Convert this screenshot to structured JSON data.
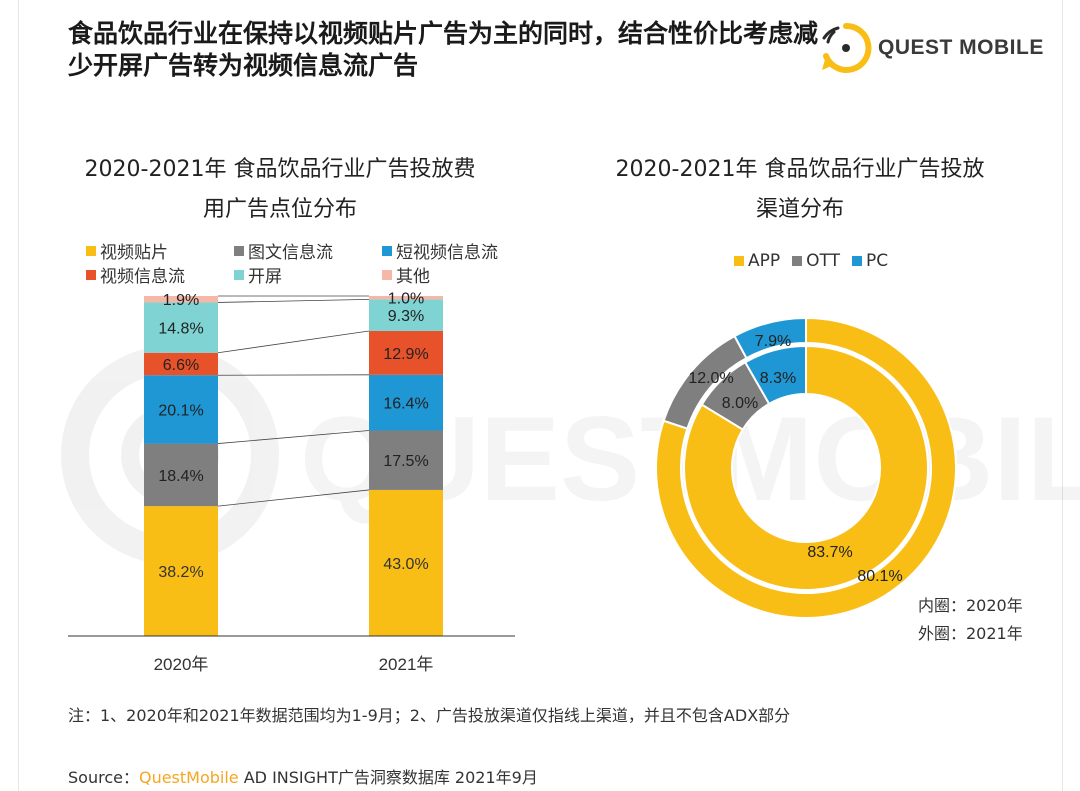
{
  "headline": "食品饮品行业在保持以视频贴片广告为主的同时，结合性价比考虑减少开屏广告转为视频信息流广告",
  "logo": {
    "text": "QUEST MOBILE",
    "icon": "quest-mobile-logo-icon"
  },
  "watermark_text": "QUESTMOBILE",
  "colors": {
    "video_preroll": "#F9BE16",
    "image_feed": "#7F7F7F",
    "short_video_feed": "#1F97D4",
    "video_feed": "#E8522A",
    "splash": "#7FD3D3",
    "other": "#F4B7A8",
    "app": "#F9BE16",
    "ott": "#7F7F7F",
    "pc": "#1F97D4"
  },
  "chart_data": [
    {
      "type": "bar",
      "stacked": true,
      "title": "2020-2021年 食品饮品行业广告投放费用广告点位分布",
      "categories": [
        "2020年",
        "2021年"
      ],
      "series": [
        {
          "name": "视频贴片",
          "values": [
            38.2,
            43.0
          ],
          "labels": [
            "38.2%",
            "43.0%"
          ]
        },
        {
          "name": "图文信息流",
          "values": [
            18.4,
            17.5
          ],
          "labels": [
            "18.4%",
            "17.5%"
          ]
        },
        {
          "name": "短视频信息流",
          "values": [
            20.1,
            16.4
          ],
          "labels": [
            "20.1%",
            "16.4%"
          ]
        },
        {
          "name": "视频信息流",
          "values": [
            6.6,
            12.9
          ],
          "labels": [
            "6.6%",
            "12.9%"
          ]
        },
        {
          "name": "开屏",
          "values": [
            14.8,
            9.3
          ],
          "labels": [
            "14.8%",
            "9.3%"
          ]
        },
        {
          "name": "其他",
          "values": [
            1.9,
            1.0
          ],
          "labels": [
            "1.9%",
            "1.0%"
          ]
        }
      ],
      "ylim": [
        0,
        100
      ],
      "legend": "top",
      "grid": false
    },
    {
      "type": "pie",
      "donut": true,
      "title": "2020-2021年 食品饮品行业广告投放渠道分布",
      "categories": [
        "APP",
        "OTT",
        "PC"
      ],
      "series": [
        {
          "name": "内圈：2020年",
          "values": [
            83.7,
            8.0,
            8.3
          ],
          "labels": [
            "83.7%",
            "8.0%",
            "8.3%"
          ]
        },
        {
          "name": "外圈：2021年",
          "values": [
            80.1,
            12.0,
            7.9
          ],
          "labels": [
            "80.1%",
            "12.0%",
            "7.9%"
          ]
        }
      ],
      "legend": "top"
    }
  ],
  "chart1": {
    "title_line1": "2020-2021年 食品饮品行业广告投放费",
    "title_line2": "用广告点位分布"
  },
  "chart2": {
    "title_line1": "2020-2021年 食品饮品行业广告投放",
    "title_line2": "渠道分布",
    "inner_note": "内圈：2020年",
    "outer_note": "外圈：2021年"
  },
  "note": "注：1、2020年和2021年数据范围均为1-9月；2、广告投放渠道仅指线上渠道，并且不包含ADX部分",
  "source": {
    "prefix": "Source：",
    "brand": "QuestMobile",
    "rest": " AD INSIGHT广告洞察数据库  2021年9月"
  }
}
